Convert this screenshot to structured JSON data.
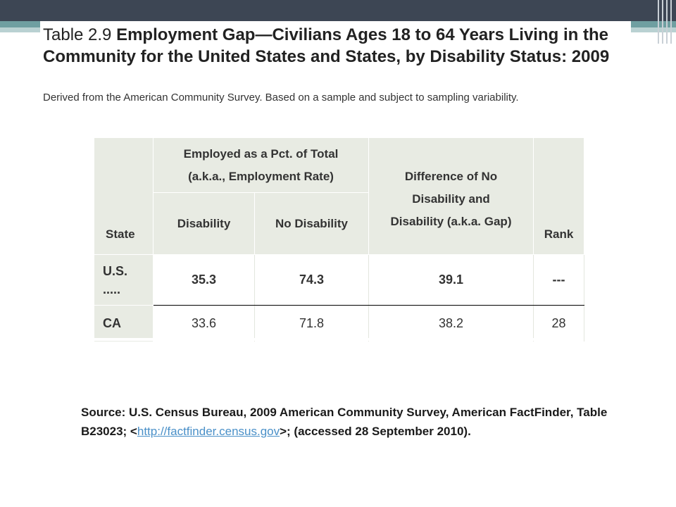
{
  "title": {
    "number": "Table 2.9",
    "text": "Employment Gap—Civilians Ages 18 to 64 Years Living in the Community for the United States and States, by Disability Status: 2009"
  },
  "subtitle": "Derived from the American Community Survey. Based on a sample and subject to sampling variability.",
  "table": {
    "headers": {
      "state": "State",
      "employed_group_line1": "Employed as a Pct. of Total",
      "employed_group_line2": "(a.k.a., Employment Rate)",
      "disability": "Disability",
      "no_disability": "No Disability",
      "gap_line1": "Difference of No",
      "gap_line2": "Disability and",
      "gap_line3": "Disability (a.k.a. Gap)",
      "rank": "Rank"
    },
    "rows": [
      {
        "state_line1": "U.S.",
        "state_line2": ".....",
        "disability": "35.3",
        "no_disability": "74.3",
        "gap": "39.1",
        "rank": "---"
      },
      {
        "state_line1": "CA",
        "state_line2": "",
        "disability": "33.6",
        "no_disability": "71.8",
        "gap": "38.2",
        "rank": "28"
      }
    ]
  },
  "source": {
    "prefix": "Source: U.S. Census Bureau, 2009 American Community Survey, American FactFinder, Table B23023; <",
    "link": "http://factfinder.census.gov",
    "suffix": ">; (accessed 28 September 2010)."
  },
  "colors": {
    "top_bar": "#3d4654",
    "accent": "#6f9fa1",
    "header_bg": "#e8ebe3",
    "link": "#4a90c8"
  }
}
